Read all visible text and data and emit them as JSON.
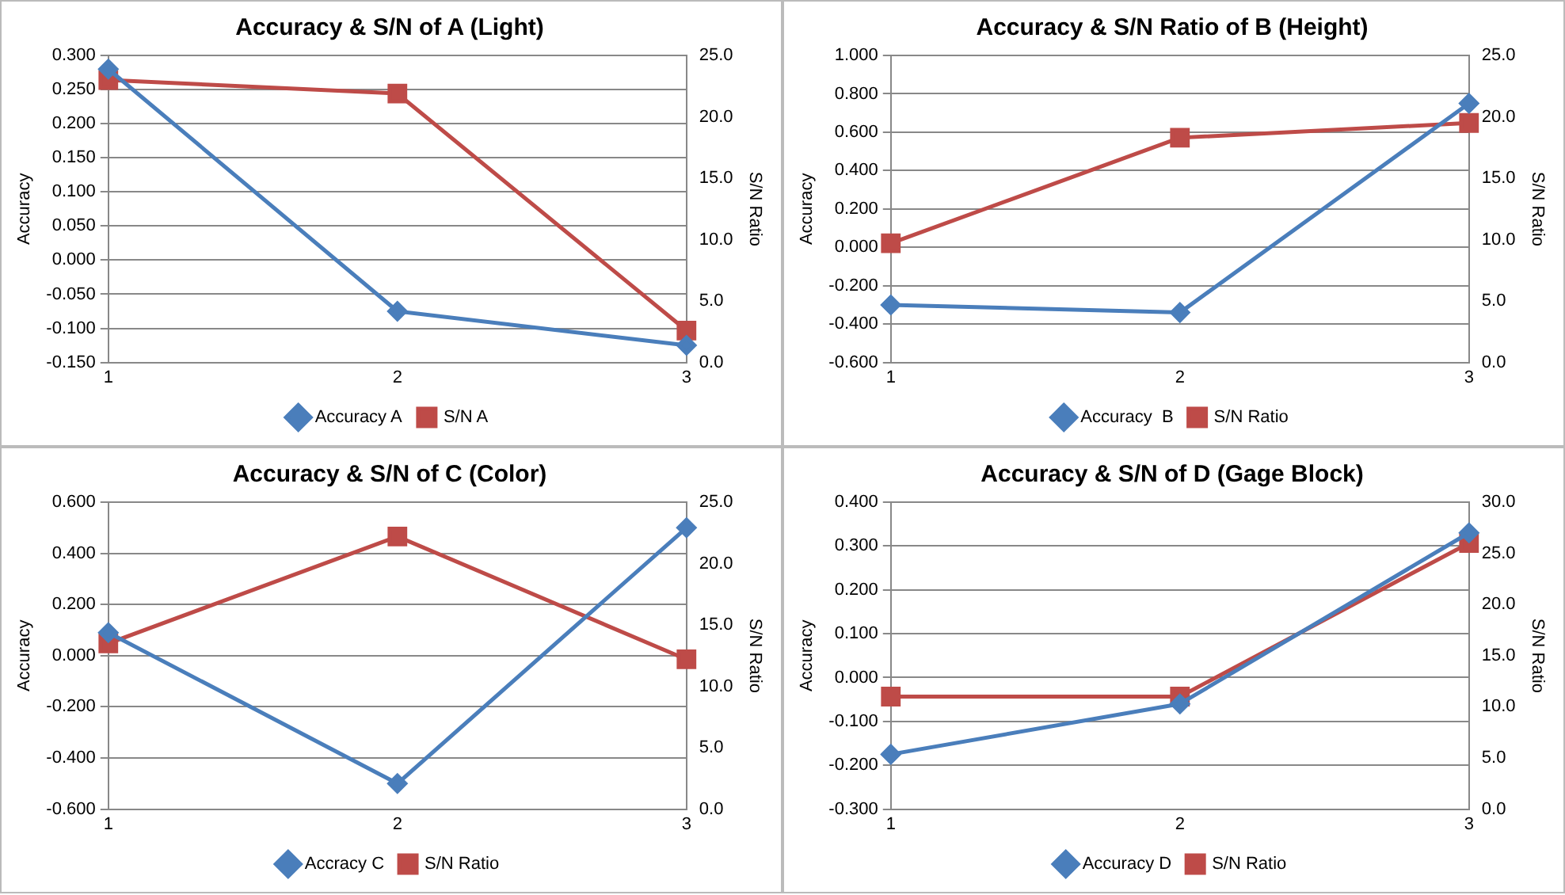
{
  "chart_data": [
    {
      "type": "line",
      "title": "Accuracy & S/N of A (Light)",
      "ylabel": "Accuracy",
      "y2label": "S/N Ratio",
      "categories": [
        "1",
        "2",
        "3"
      ],
      "grid": "y",
      "legend": "bottom",
      "series": [
        {
          "name": "Accuracy A",
          "color": "#4a7ebb",
          "marker": "diamond",
          "values": [
            0.28,
            -0.075,
            -0.125
          ]
        },
        {
          "name": "S/N A",
          "color": "#be4b48",
          "marker": "square",
          "axis": "y2",
          "values": [
            23.0,
            21.9,
            2.6
          ]
        }
      ],
      "ylim": [
        -0.15,
        0.3
      ],
      "yticks": [
        {
          "value": -0.15,
          "label": "-0.150"
        },
        {
          "value": -0.1,
          "label": "-0.100"
        },
        {
          "value": -0.05,
          "label": "-0.050"
        },
        {
          "value": 0,
          "label": "0.000"
        },
        {
          "value": 0.05,
          "label": "0.050"
        },
        {
          "value": 0.1,
          "label": "0.100"
        },
        {
          "value": 0.15,
          "label": "0.150"
        },
        {
          "value": 0.2,
          "label": "0.200"
        },
        {
          "value": 0.25,
          "label": "0.250"
        },
        {
          "value": 0.3,
          "label": "0.300"
        }
      ],
      "y2lim": [
        0,
        25
      ],
      "y2ticks": [
        {
          "value": 0,
          "label": "0.0"
        },
        {
          "value": 5,
          "label": "5.0"
        },
        {
          "value": 10,
          "label": "10.0"
        },
        {
          "value": 15,
          "label": "15.0"
        },
        {
          "value": 20,
          "label": "20.0"
        },
        {
          "value": 25,
          "label": "25.0"
        }
      ]
    },
    {
      "type": "line",
      "title": "Accuracy & S/N Ratio of B (Height)",
      "ylabel": "Accuracy",
      "y2label": "S/N Ratio",
      "categories": [
        "1",
        "2",
        "3"
      ],
      "grid": "y",
      "legend": "bottom",
      "series": [
        {
          "name": "Accuracy  B",
          "color": "#4a7ebb",
          "marker": "diamond",
          "values": [
            -0.3,
            -0.34,
            0.75
          ]
        },
        {
          "name": "S/N Ratio",
          "color": "#be4b48",
          "marker": "square",
          "axis": "y2",
          "values": [
            9.7,
            18.3,
            19.5
          ]
        }
      ],
      "ylim": [
        -0.6,
        1.0
      ],
      "yticks": [
        {
          "value": -0.6,
          "label": "-0.600"
        },
        {
          "value": -0.4,
          "label": "-0.400"
        },
        {
          "value": -0.2,
          "label": "-0.200"
        },
        {
          "value": 0,
          "label": "0.000"
        },
        {
          "value": 0.2,
          "label": "0.200"
        },
        {
          "value": 0.4,
          "label": "0.400"
        },
        {
          "value": 0.6,
          "label": "0.600"
        },
        {
          "value": 0.8,
          "label": "0.800"
        },
        {
          "value": 1.0,
          "label": "1.000"
        }
      ],
      "y2lim": [
        0,
        25
      ],
      "y2ticks": [
        {
          "value": 0,
          "label": "0.0"
        },
        {
          "value": 5,
          "label": "5.0"
        },
        {
          "value": 10,
          "label": "10.0"
        },
        {
          "value": 15,
          "label": "15.0"
        },
        {
          "value": 20,
          "label": "20.0"
        },
        {
          "value": 25,
          "label": "25.0"
        }
      ]
    },
    {
      "type": "line",
      "title": "Accuracy & S/N of C (Color)",
      "ylabel": "Accuracy",
      "y2label": "S/N Ratio",
      "categories": [
        "1",
        "2",
        "3"
      ],
      "grid": "y",
      "legend": "bottom",
      "series": [
        {
          "name": "Accracy C",
          "color": "#4a7ebb",
          "marker": "diamond",
          "values": [
            0.09,
            -0.5,
            0.5
          ]
        },
        {
          "name": "S/N Ratio",
          "color": "#be4b48",
          "marker": "square",
          "axis": "y2",
          "values": [
            13.5,
            22.2,
            12.2
          ]
        }
      ],
      "ylim": [
        -0.6,
        0.6
      ],
      "yticks": [
        {
          "value": -0.6,
          "label": "-0.600"
        },
        {
          "value": -0.4,
          "label": "-0.400"
        },
        {
          "value": -0.2,
          "label": "-0.200"
        },
        {
          "value": 0,
          "label": "0.000"
        },
        {
          "value": 0.2,
          "label": "0.200"
        },
        {
          "value": 0.4,
          "label": "0.400"
        },
        {
          "value": 0.6,
          "label": "0.600"
        }
      ],
      "y2lim": [
        0,
        25
      ],
      "y2ticks": [
        {
          "value": 0,
          "label": "0.0"
        },
        {
          "value": 5,
          "label": "5.0"
        },
        {
          "value": 10,
          "label": "10.0"
        },
        {
          "value": 15,
          "label": "15.0"
        },
        {
          "value": 20,
          "label": "20.0"
        },
        {
          "value": 25,
          "label": "25.0"
        }
      ]
    },
    {
      "type": "line",
      "title": "Accuracy & S/N of D (Gage Block)",
      "ylabel": "Accuracy",
      "y2label": "S/N Ratio",
      "categories": [
        "1",
        "2",
        "3"
      ],
      "grid": "y",
      "legend": "bottom",
      "series": [
        {
          "name": "Accuracy D",
          "color": "#4a7ebb",
          "marker": "diamond",
          "values": [
            -0.175,
            -0.06,
            0.33
          ]
        },
        {
          "name": "S/N Ratio",
          "color": "#be4b48",
          "marker": "square",
          "axis": "y2",
          "values": [
            11.0,
            11.0,
            26.0
          ]
        }
      ],
      "ylim": [
        -0.3,
        0.4
      ],
      "yticks": [
        {
          "value": -0.3,
          "label": "-0.300"
        },
        {
          "value": -0.2,
          "label": "-0.200"
        },
        {
          "value": -0.1,
          "label": "-0.100"
        },
        {
          "value": 0,
          "label": "0.000"
        },
        {
          "value": 0.1,
          "label": "0.100"
        },
        {
          "value": 0.2,
          "label": "0.200"
        },
        {
          "value": 0.3,
          "label": "0.300"
        },
        {
          "value": 0.4,
          "label": "0.400"
        }
      ],
      "y2lim": [
        0,
        30
      ],
      "y2ticks": [
        {
          "value": 0,
          "label": "0.0"
        },
        {
          "value": 5,
          "label": "5.0"
        },
        {
          "value": 10,
          "label": "10.0"
        },
        {
          "value": 15,
          "label": "15.0"
        },
        {
          "value": 20,
          "label": "20.0"
        },
        {
          "value": 25,
          "label": "25.0"
        },
        {
          "value": 30,
          "label": "30.0"
        }
      ]
    }
  ]
}
